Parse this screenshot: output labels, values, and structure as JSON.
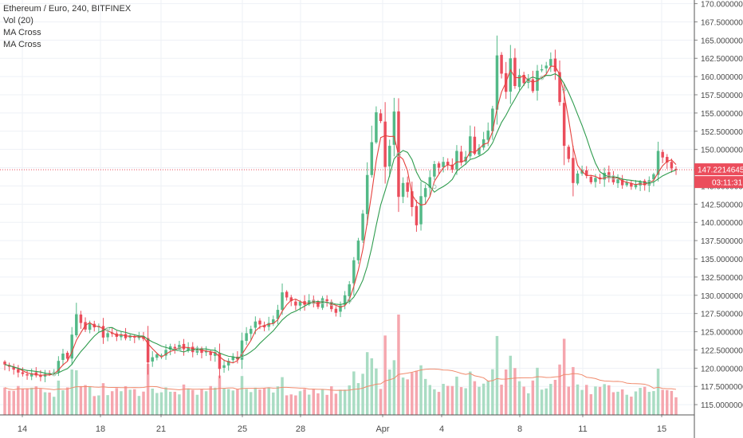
{
  "legend": {
    "title": "Ethereum / Euro, 240, BITFINEX",
    "indicators": [
      "Vol (20)",
      "MA Cross",
      "MA Cross"
    ]
  },
  "price_tag": {
    "price": "147.22146450",
    "countdown": "03:11:31"
  },
  "colors": {
    "up": "#53b987",
    "down": "#eb4d5c",
    "vol_up": "#a9dcc3",
    "vol_down": "#f5a6ae",
    "ma_fast": "#e5413d",
    "ma_slow": "#2f9c4e",
    "vol_ma": "#f08a6c",
    "grid": "#eef1f6",
    "text": "#4a4a4a",
    "price_line": "#eb4d5c"
  },
  "chart_data": {
    "type": "candlestick",
    "x_tick_labels": [
      "14",
      "18",
      "21",
      "25",
      "28",
      "Apr",
      "4",
      "8",
      "11",
      "15"
    ],
    "y_tick_labels": [
      "115.00000000",
      "117.50000000",
      "120.00000000",
      "122.50000000",
      "125.00000000",
      "127.50000000",
      "130.00000000",
      "132.50000000",
      "135.00000000",
      "137.50000000",
      "140.00000000",
      "142.50000000",
      "145.00000000",
      "147.50000000",
      "150.00000000",
      "152.50000000",
      "155.00000000",
      "157.50000000",
      "160.00000000",
      "162.50000000",
      "165.00000000",
      "167.50000000",
      "170.00000000"
    ],
    "y_range": [
      113.7,
      170.5
    ],
    "grid": true,
    "closes": [
      120.5,
      120.2,
      119.8,
      119.4,
      119.2,
      119.0,
      119.3,
      119.0,
      118.8,
      119.2,
      119.3,
      119.5,
      121.0,
      122.0,
      121.3,
      124.6,
      127.4,
      126.2,
      125.3,
      126.1,
      125.6,
      125.8,
      124.2,
      124.8,
      124.7,
      124.3,
      124.6,
      124.1,
      124.5,
      124.2,
      124.4,
      124.0,
      120.8,
      121.5,
      121.9,
      121.8,
      122.5,
      123.0,
      122.7,
      123.2,
      122.6,
      122.8,
      122.2,
      122.7,
      122.1,
      122.4,
      121.8,
      122.2,
      119.9,
      120.4,
      121.0,
      121.6,
      121.2,
      123.8,
      124.8,
      125.4,
      126.4,
      126.0,
      125.6,
      126.2,
      126.7,
      128.0,
      130.4,
      129.7,
      129.2,
      128.6,
      129.1,
      128.7,
      129.3,
      129.0,
      128.4,
      129.6,
      129.2,
      128.1,
      127.6,
      128.6,
      130.0,
      131.5,
      134.8,
      137.5,
      141.2,
      146.5,
      151.0,
      155.1,
      153.9,
      147.6,
      150.5,
      155.2,
      143.5,
      145.4,
      144.2,
      142.1,
      139.6,
      143.6,
      144.7,
      146.2,
      148.0,
      147.5,
      148.3,
      147.9,
      147.2,
      149.8,
      148.2,
      149.0,
      151.8,
      149.4,
      150.2,
      151.4,
      152.6,
      155.6,
      162.9,
      160.4,
      157.9,
      162.5,
      158.7,
      160.2,
      159.1,
      159.7,
      158.0,
      160.8,
      161.0,
      161.5,
      162.4,
      160.7,
      156.5,
      150.5,
      148.7,
      145.4,
      146.7,
      147.2,
      146.4,
      145.5,
      146.1,
      145.9,
      146.8,
      146.2,
      145.5,
      145.9,
      145.1,
      145.5,
      144.9,
      145.2,
      145.6,
      145.1,
      145.8,
      146.6,
      149.8,
      148.9,
      148.2,
      147.4,
      147.2
    ],
    "note_x_values": "one 4-hour candle per element; 14 Mar through 15 Apr"
  }
}
